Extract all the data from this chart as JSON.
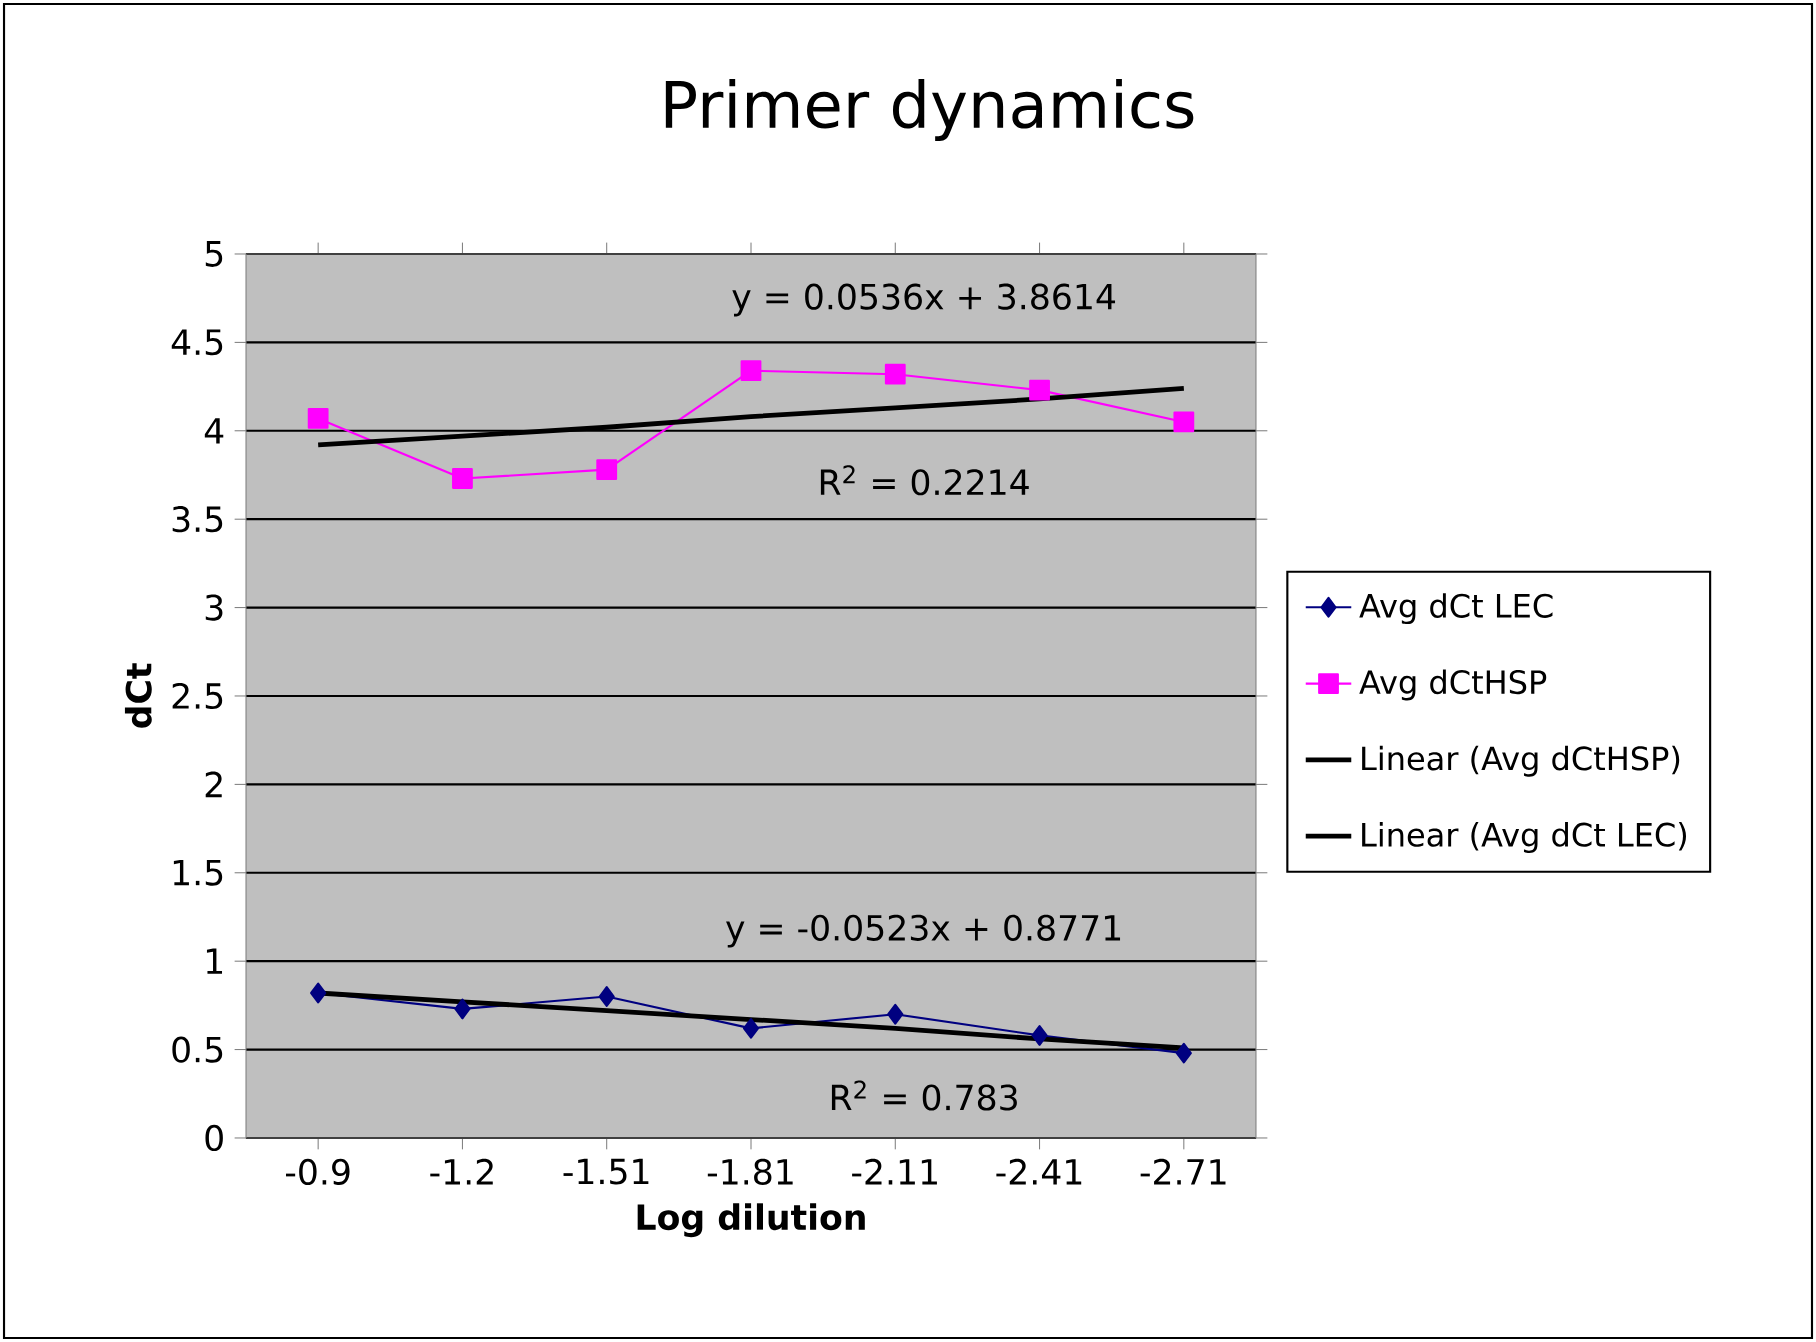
{
  "chart_data": {
    "type": "line",
    "title": "Primer dynamics",
    "xlabel": "Log dilution",
    "ylabel": "dCt",
    "categories": [
      "-0.9",
      "-1.2",
      "-1.51",
      "-1.81",
      "-2.11",
      "-2.41",
      "-2.71"
    ],
    "series": [
      {
        "name": "Avg dCt LEC",
        "color": "#000080",
        "marker": "diamond",
        "values": [
          0.82,
          0.73,
          0.8,
          0.62,
          0.7,
          0.58,
          0.48
        ]
      },
      {
        "name": "Avg dCtHSP",
        "color": "#ff00ff",
        "marker": "square",
        "values": [
          4.07,
          3.73,
          3.78,
          4.34,
          4.32,
          4.23,
          4.05
        ]
      },
      {
        "name": "Linear (Avg dCtHSP)",
        "color": "#000000",
        "marker": "none",
        "values": [
          3.92,
          3.97,
          4.02,
          4.08,
          4.13,
          4.18,
          4.24
        ]
      },
      {
        "name": "Linear (Avg dCt LEC)",
        "color": "#000000",
        "marker": "none",
        "values": [
          0.82,
          0.77,
          0.72,
          0.67,
          0.62,
          0.56,
          0.51
        ]
      }
    ],
    "annotations": [
      "y = 0.0536x + 3.8614",
      "R$^{2}$ = 0.2214",
      "y = -0.0523x + 0.8771",
      "R$^{2}$ = 0.783"
    ],
    "ylim": [
      0,
      5
    ],
    "yticks": [
      0,
      0.5,
      1,
      1.5,
      2,
      2.5,
      3,
      3.5,
      4,
      4.5,
      5
    ],
    "grid": "y",
    "legend": "right",
    "line_style": "solid"
  }
}
